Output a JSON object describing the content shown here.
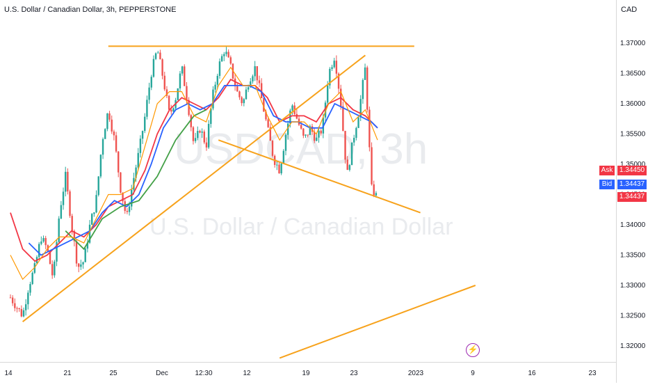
{
  "title": "U.S. Dollar / Canadian Dollar, 3h, PEPPERSTONE",
  "currency": "CAD",
  "watermark": {
    "symbol": "USDCAD, 3h",
    "name": "U.S. Dollar / Canadian Dollar"
  },
  "colors": {
    "bull": "#26a69a",
    "bear": "#ef5350",
    "trend": "#f7a21b",
    "ma_blue": "#2962ff",
    "ma_red": "#f23645",
    "ma_green": "#43a047",
    "ma_orange": "#ff9800",
    "ask": "#f23645",
    "bid": "#2962ff"
  },
  "price_tags": {
    "ask_label": "Ask",
    "ask_value": "1.34450",
    "bid_label": "Bid",
    "bid_value": "1.34437",
    "last_value": "1.34437"
  },
  "event_icon": "lightning-icon",
  "chart_data": {
    "type": "candlestick",
    "title": "U.S. Dollar / Canadian Dollar, 3h, PEPPERSTONE",
    "y_ticks": [
      "1.37000",
      "1.36500",
      "1.36000",
      "1.35500",
      "1.35000",
      "1.34500",
      "1.34000",
      "1.33500",
      "1.33000",
      "1.32500",
      "1.32000"
    ],
    "ylim": [
      1.316,
      1.376
    ],
    "x_ticks": [
      "14",
      "21",
      "25",
      "Dec",
      "12:30",
      "12",
      "19",
      "23",
      "2023",
      "9",
      "16",
      "23"
    ],
    "price_path": [
      [
        14,
        1.328
      ],
      [
        16,
        1.325
      ],
      [
        17,
        1.33
      ],
      [
        18,
        1.333
      ],
      [
        19,
        1.338
      ],
      [
        20,
        1.336
      ],
      [
        21,
        1.331
      ],
      [
        22,
        1.342
      ],
      [
        23,
        1.348
      ],
      [
        24,
        1.34
      ],
      [
        25,
        1.333
      ],
      [
        26,
        1.334
      ],
      [
        27,
        1.34
      ],
      [
        28,
        1.344
      ],
      [
        29,
        1.354
      ],
      [
        30,
        1.359
      ],
      [
        31,
        1.354
      ],
      [
        32,
        1.346
      ],
      [
        33,
        1.341
      ],
      [
        34,
        1.347
      ],
      [
        35,
        1.352
      ],
      [
        36,
        1.358
      ],
      [
        37,
        1.365
      ],
      [
        38,
        1.369
      ],
      [
        39,
        1.364
      ],
      [
        40,
        1.358
      ],
      [
        41,
        1.361
      ],
      [
        42,
        1.366
      ],
      [
        43,
        1.36
      ],
      [
        44,
        1.353
      ],
      [
        45,
        1.356
      ],
      [
        46,
        1.353
      ],
      [
        47,
        1.361
      ],
      [
        48,
        1.366
      ],
      [
        49,
        1.369
      ],
      [
        50,
        1.366
      ],
      [
        51,
        1.362
      ],
      [
        52,
        1.36
      ],
      [
        53,
        1.364
      ],
      [
        54,
        1.366
      ],
      [
        55,
        1.361
      ],
      [
        56,
        1.356
      ],
      [
        57,
        1.351
      ],
      [
        58,
        1.349
      ],
      [
        59,
        1.355
      ],
      [
        60,
        1.36
      ],
      [
        61,
        1.357
      ],
      [
        62,
        1.354
      ],
      [
        63,
        1.356
      ],
      [
        64,
        1.354
      ],
      [
        65,
        1.356
      ],
      [
        66,
        1.365
      ],
      [
        67,
        1.368
      ],
      [
        68,
        1.36
      ],
      [
        69,
        1.348
      ],
      [
        70,
        1.354
      ],
      [
        71,
        1.359
      ],
      [
        72,
        1.366
      ],
      [
        73,
        1.346
      ],
      [
        74,
        1.3444
      ]
    ],
    "moving_averages": [
      {
        "color": "#f23645",
        "values": [
          [
            14,
            1.342
          ],
          [
            16,
            1.336
          ],
          [
            18,
            1.334
          ],
          [
            20,
            1.335
          ],
          [
            22,
            1.337
          ],
          [
            24,
            1.339
          ],
          [
            26,
            1.338
          ],
          [
            28,
            1.34
          ],
          [
            30,
            1.343
          ],
          [
            32,
            1.344
          ],
          [
            34,
            1.345
          ],
          [
            36,
            1.349
          ],
          [
            38,
            1.355
          ],
          [
            40,
            1.359
          ],
          [
            42,
            1.361
          ],
          [
            44,
            1.36
          ],
          [
            46,
            1.359
          ],
          [
            48,
            1.361
          ],
          [
            50,
            1.364
          ],
          [
            52,
            1.363
          ],
          [
            54,
            1.363
          ],
          [
            56,
            1.361
          ],
          [
            58,
            1.357
          ],
          [
            60,
            1.358
          ],
          [
            62,
            1.358
          ],
          [
            64,
            1.357
          ],
          [
            66,
            1.36
          ],
          [
            68,
            1.361
          ],
          [
            70,
            1.359
          ],
          [
            72,
            1.358
          ],
          [
            74,
            1.356
          ]
        ]
      },
      {
        "color": "#2962ff",
        "values": [
          [
            17,
            1.337
          ],
          [
            19,
            1.335
          ],
          [
            21,
            1.336
          ],
          [
            23,
            1.337
          ],
          [
            25,
            1.338
          ],
          [
            27,
            1.339
          ],
          [
            29,
            1.342
          ],
          [
            31,
            1.344
          ],
          [
            33,
            1.343
          ],
          [
            35,
            1.345
          ],
          [
            37,
            1.35
          ],
          [
            39,
            1.356
          ],
          [
            41,
            1.359
          ],
          [
            43,
            1.36
          ],
          [
            45,
            1.359
          ],
          [
            47,
            1.36
          ],
          [
            49,
            1.363
          ],
          [
            51,
            1.363
          ],
          [
            53,
            1.363
          ],
          [
            55,
            1.362
          ],
          [
            57,
            1.358
          ],
          [
            59,
            1.357
          ],
          [
            61,
            1.357
          ],
          [
            63,
            1.356
          ],
          [
            65,
            1.356
          ],
          [
            67,
            1.36
          ],
          [
            69,
            1.359
          ],
          [
            71,
            1.358
          ],
          [
            73,
            1.357
          ],
          [
            74,
            1.356
          ]
        ]
      },
      {
        "color": "#43a047",
        "values": [
          [
            23,
            1.339
          ],
          [
            26,
            1.336
          ],
          [
            29,
            1.341
          ],
          [
            32,
            1.343
          ],
          [
            35,
            1.344
          ],
          [
            38,
            1.348
          ],
          [
            41,
            1.354
          ],
          [
            44,
            1.358
          ],
          [
            46,
            1.359
          ]
        ]
      },
      {
        "color": "#ff9800",
        "values": [
          [
            14,
            1.335
          ],
          [
            16,
            1.331
          ],
          [
            18,
            1.333
          ],
          [
            20,
            1.336
          ],
          [
            22,
            1.338
          ],
          [
            24,
            1.338
          ],
          [
            26,
            1.337
          ],
          [
            28,
            1.341
          ],
          [
            30,
            1.345
          ],
          [
            32,
            1.345
          ],
          [
            34,
            1.346
          ],
          [
            36,
            1.353
          ],
          [
            38,
            1.36
          ],
          [
            40,
            1.362
          ],
          [
            42,
            1.362
          ],
          [
            44,
            1.358
          ],
          [
            46,
            1.357
          ],
          [
            48,
            1.363
          ],
          [
            50,
            1.366
          ],
          [
            52,
            1.363
          ],
          [
            54,
            1.363
          ],
          [
            56,
            1.358
          ],
          [
            58,
            1.354
          ],
          [
            60,
            1.357
          ],
          [
            62,
            1.357
          ],
          [
            64,
            1.355
          ],
          [
            66,
            1.36
          ],
          [
            68,
            1.362
          ],
          [
            70,
            1.357
          ],
          [
            72,
            1.359
          ],
          [
            74,
            1.354
          ]
        ]
      }
    ],
    "trendlines": [
      {
        "name": "resistance",
        "from": [
          30,
          1.3695
        ],
        "to": [
          80,
          1.3695
        ]
      },
      {
        "name": "rising-support",
        "from": [
          16,
          1.324
        ],
        "to": [
          72,
          1.368
        ]
      },
      {
        "name": "falling-support",
        "from": [
          48,
          1.354
        ],
        "to": [
          81,
          1.342
        ]
      },
      {
        "name": "lower-support",
        "from": [
          58,
          1.318
        ],
        "to": [
          90,
          1.33
        ]
      }
    ]
  }
}
